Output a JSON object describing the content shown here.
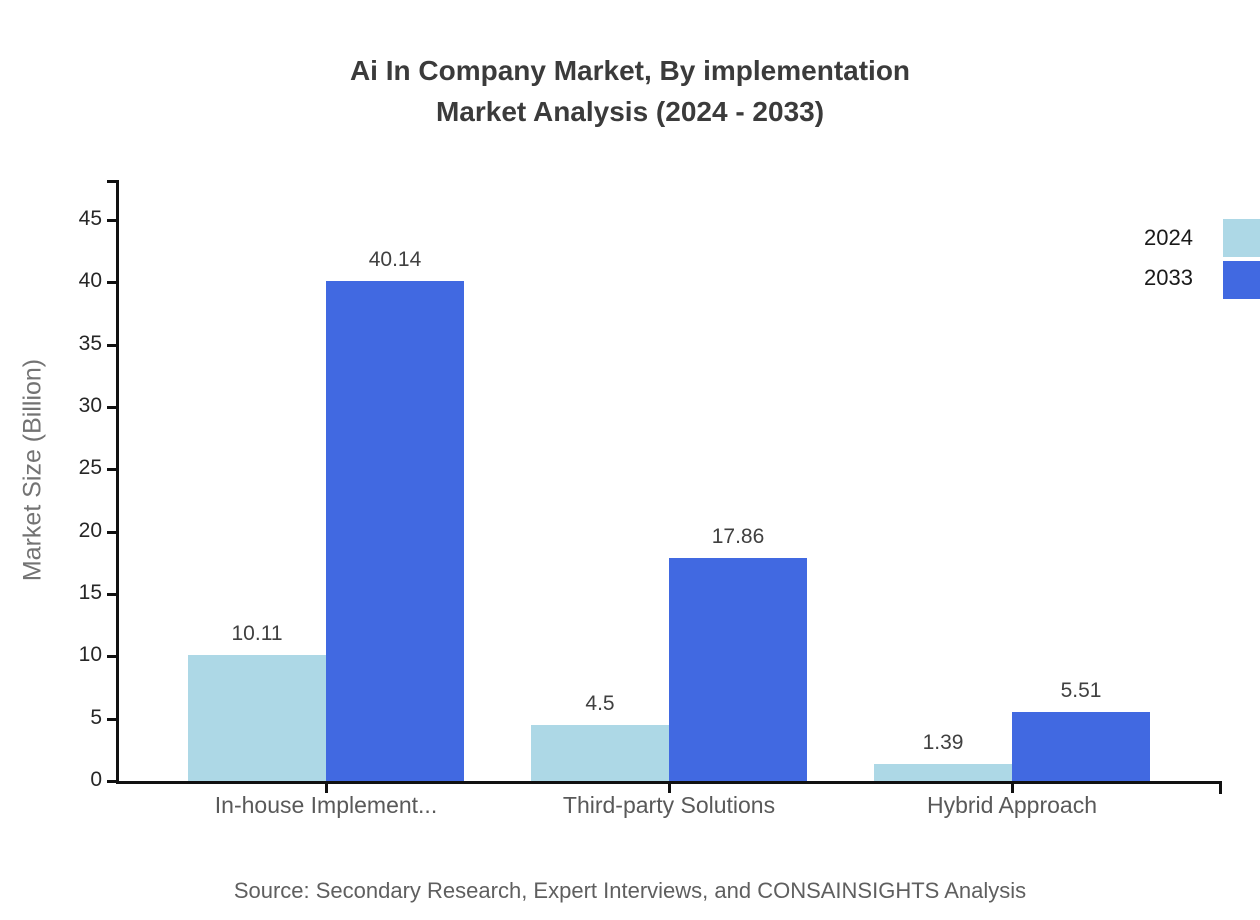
{
  "title": {
    "line1": "Ai In Company Market, By implementation",
    "line2": "Market Analysis (2024 - 2033)"
  },
  "source": "Source: Secondary Research, Expert Interviews, and CONSAINSIGHTS Analysis",
  "legend": [
    {
      "label": "2024",
      "color": "#add8e6"
    },
    {
      "label": "2033",
      "color": "#4169e1"
    }
  ],
  "chart_data": {
    "type": "bar",
    "title": "Ai In Company Market, By implementation Market Analysis (2024 - 2033)",
    "categories": [
      "In-house Implement...",
      "Third-party Solutions",
      "Hybrid Approach"
    ],
    "series": [
      {
        "name": "2024",
        "color": "#add8e6",
        "values": [
          10.11,
          4.5,
          1.39
        ]
      },
      {
        "name": "2033",
        "color": "#4169e1",
        "values": [
          40.14,
          17.86,
          5.51
        ]
      }
    ],
    "xlabel": "",
    "ylabel": "Market Size (Billion)",
    "ylim": [
      0,
      45
    ],
    "ytick_step": 5,
    "grid": false,
    "legend_position": "top-right",
    "value_labels": true,
    "axis_color": "#111111"
  }
}
